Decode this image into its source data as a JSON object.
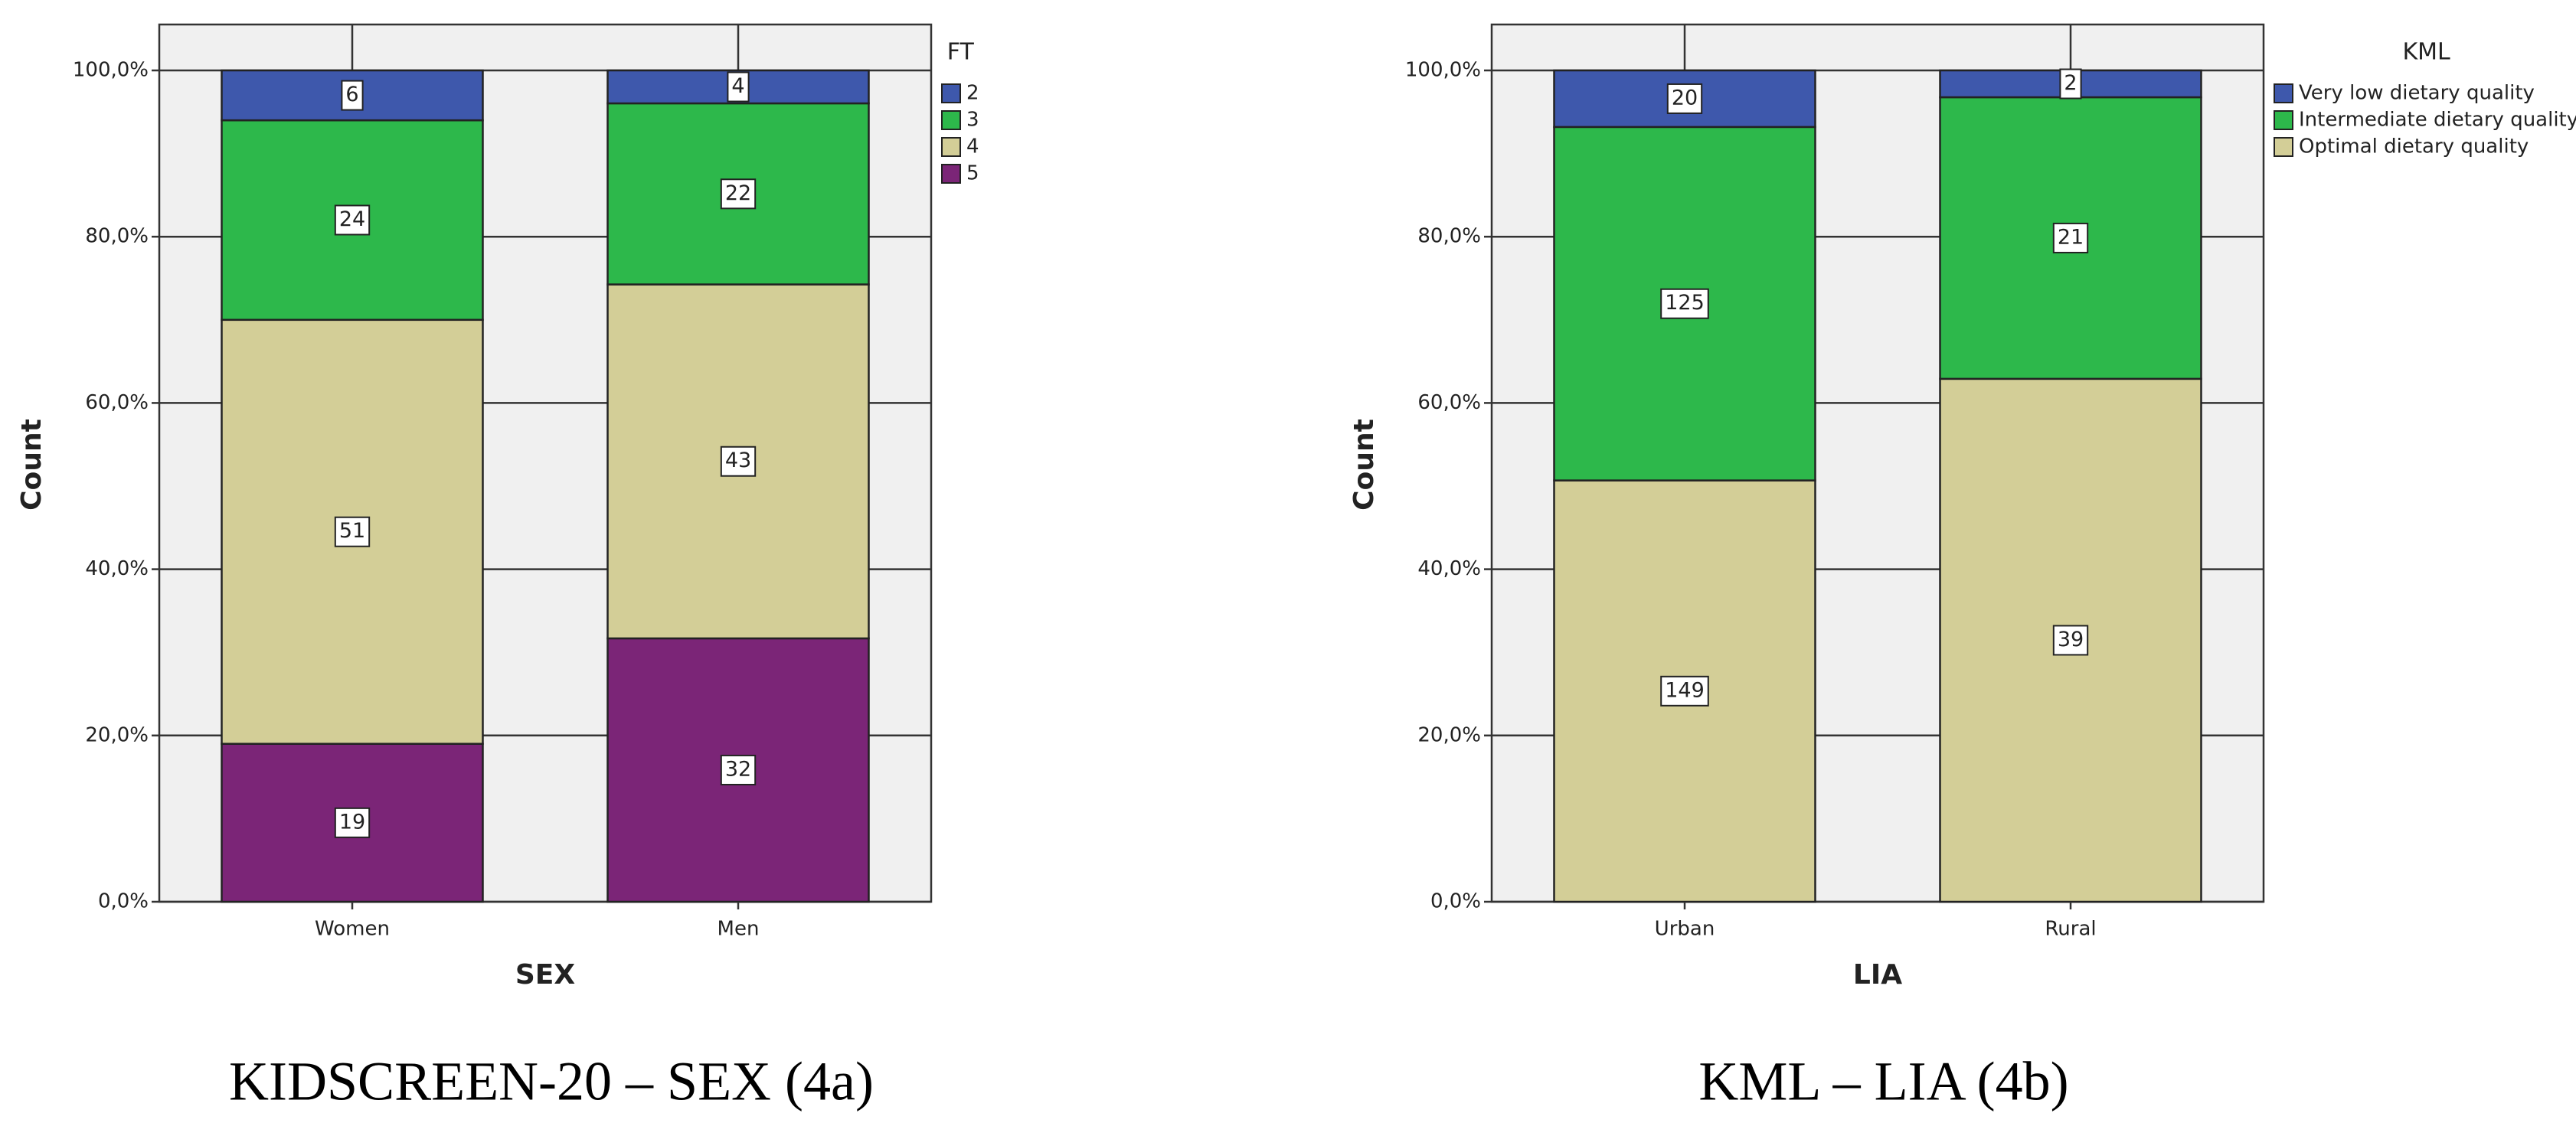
{
  "chart_data": [
    {
      "type": "bar",
      "stacking": "percent",
      "caption": "KIDSCREEN-20 – SEX (4a)",
      "x_label": "SEX",
      "y_label": "Count",
      "legend_title": "FT",
      "categories": [
        "Women",
        "Men"
      ],
      "series": [
        {
          "name": "2",
          "color": "#3e58ac",
          "values": [
            6,
            4
          ]
        },
        {
          "name": "3",
          "color": "#2db84b",
          "values": [
            24,
            22
          ]
        },
        {
          "name": "4",
          "color": "#d3ce97",
          "values": [
            51,
            43
          ]
        },
        {
          "name": "5",
          "color": "#7b2577",
          "values": [
            19,
            32
          ]
        }
      ],
      "ylim": [
        0,
        100
      ],
      "yticks": [
        {
          "value": 0,
          "label": "0,0%"
        },
        {
          "value": 20,
          "label": "20,0%"
        },
        {
          "value": 40,
          "label": "40,0%"
        },
        {
          "value": 60,
          "label": "60,0%"
        },
        {
          "value": 80,
          "label": "80,0%"
        },
        {
          "value": 100,
          "label": "100,0%"
        }
      ],
      "grid": true
    },
    {
      "type": "bar",
      "stacking": "percent",
      "caption": "KML – LIA (4b)",
      "x_label": "LIA",
      "y_label": "Count",
      "legend_title": "KML",
      "categories": [
        "Urban",
        "Rural"
      ],
      "series": [
        {
          "name": "Very low dietary quality",
          "color": "#3e58ac",
          "values": [
            20,
            2
          ]
        },
        {
          "name": "Intermediate dietary quality",
          "color": "#2db84b",
          "values": [
            125,
            21
          ]
        },
        {
          "name": "Optimal dietary quality",
          "color": "#d3ce97",
          "values": [
            149,
            39
          ]
        }
      ],
      "ylim": [
        0,
        100
      ],
      "yticks": [
        {
          "value": 0,
          "label": "0,0%"
        },
        {
          "value": 20,
          "label": "20,0%"
        },
        {
          "value": 40,
          "label": "40,0%"
        },
        {
          "value": 60,
          "label": "60,0%"
        },
        {
          "value": 80,
          "label": "80,0%"
        },
        {
          "value": 100,
          "label": "100,0%"
        }
      ],
      "grid": true
    }
  ]
}
